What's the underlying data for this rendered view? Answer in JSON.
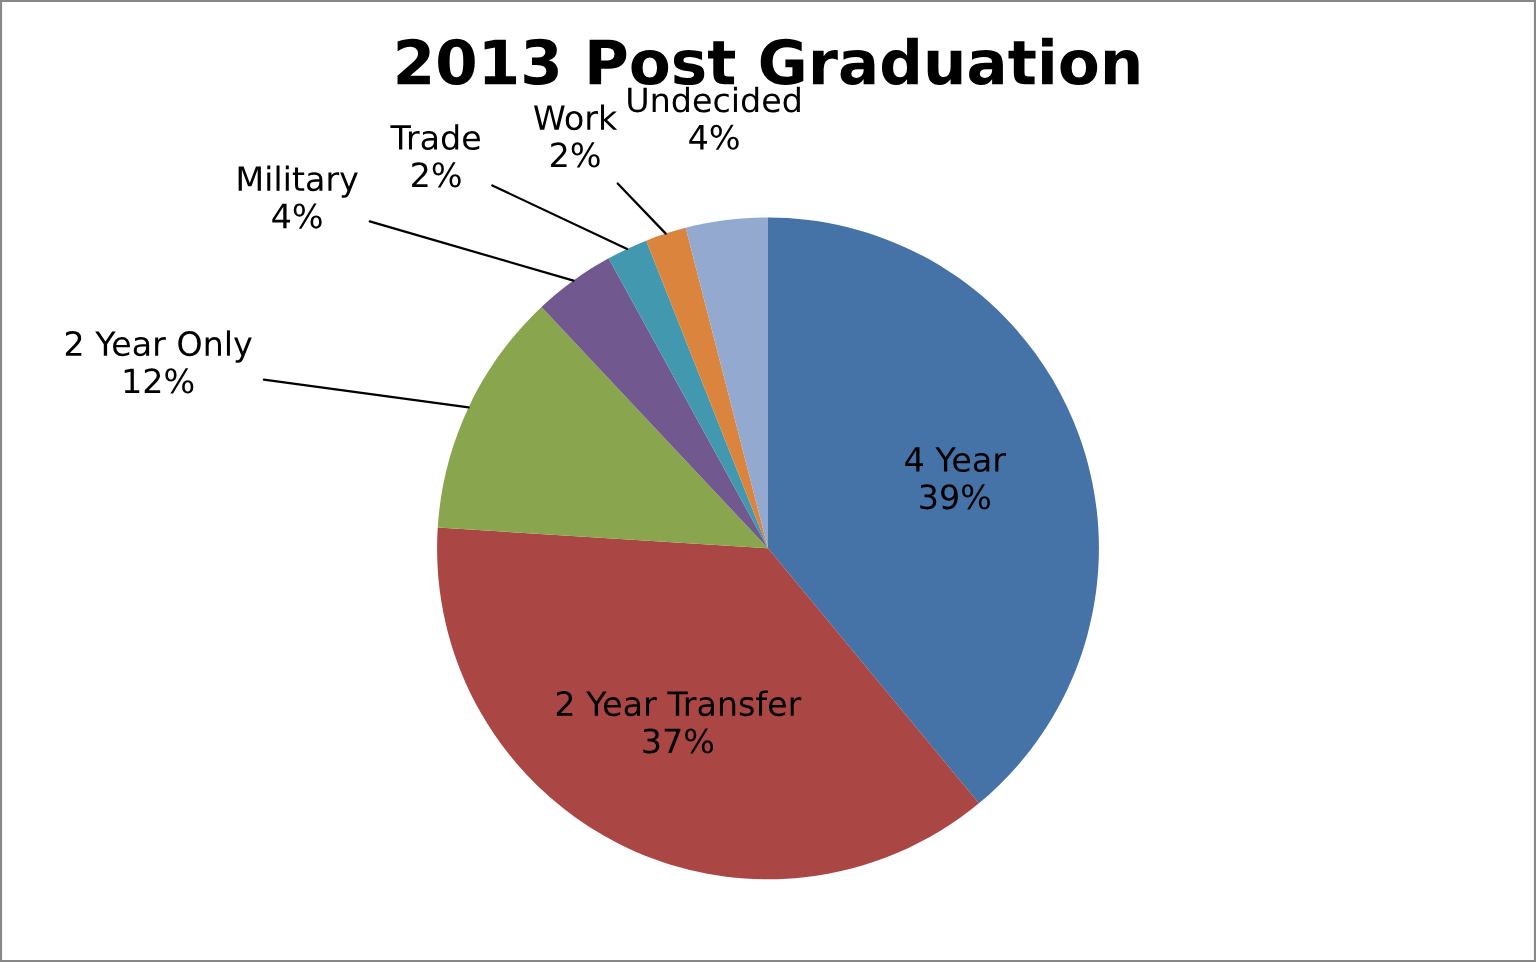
{
  "chart_data": {
    "type": "pie",
    "title": "2013 Post Graduation",
    "categories": [
      "4 Year",
      "2 Year Transfer",
      "2 Year Only",
      "Military",
      "Trade",
      "Work",
      "Undecided"
    ],
    "values": [
      39,
      37,
      12,
      4,
      2,
      2,
      4
    ],
    "value_labels": [
      "39%",
      "37%",
      "12%",
      "4%",
      "2%",
      "2%",
      "4%"
    ],
    "colors": [
      "#4572a7",
      "#aa4643",
      "#89a54e",
      "#71588f",
      "#4198af",
      "#db843d",
      "#93a9cf"
    ]
  }
}
